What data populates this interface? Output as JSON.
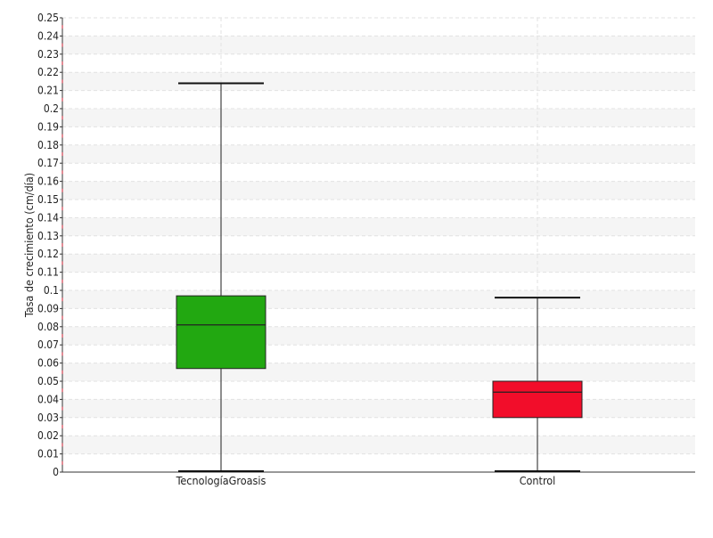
{
  "chart_data": {
    "type": "box",
    "title": "",
    "xlabel": "",
    "ylabel": "Tasa de crecimiento (cm/día)",
    "ylim": [
      0,
      0.25
    ],
    "yticks": [
      "0",
      "0.01",
      "0.02",
      "0.03",
      "0.04",
      "0.05",
      "0.06",
      "0.07",
      "0.08",
      "0.09",
      "0.1",
      "0.11",
      "0.12",
      "0.13",
      "0.14",
      "0.15",
      "0.16",
      "0.17",
      "0.18",
      "0.19",
      "0.2",
      "0.21",
      "0.22",
      "0.23",
      "0.24",
      "0.25"
    ],
    "grid": true,
    "legend": "none",
    "categories": [
      "TecnologíaGroasis",
      "Control"
    ],
    "boxes": [
      {
        "category": "TecnologíaGroasis",
        "min": 0.0,
        "q1": 0.057,
        "median": 0.081,
        "q3": 0.097,
        "max": 0.214,
        "color": "#22a811"
      },
      {
        "category": "Control",
        "min": 0.0,
        "q1": 0.03,
        "median": 0.044,
        "q3": 0.05,
        "max": 0.096,
        "color": "#f20d2a"
      }
    ]
  }
}
